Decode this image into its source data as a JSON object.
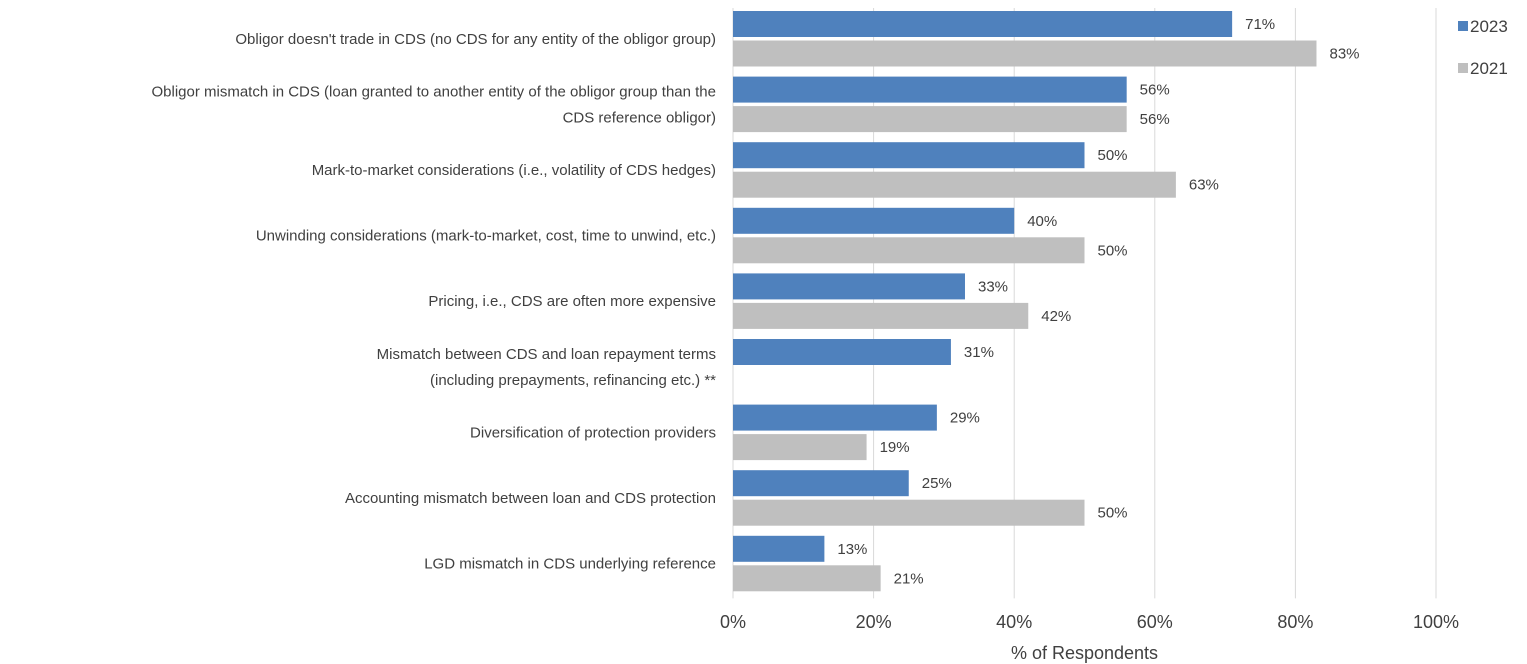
{
  "chart_data": {
    "type": "bar",
    "orientation": "horizontal",
    "categories": [
      [
        "Obligor doesn't trade in CDS (no CDS for any entity of the obligor group)"
      ],
      [
        "Obligor mismatch in CDS (loan granted to another entity of the obligor group than the",
        "CDS reference obligor)"
      ],
      [
        "Mark-to-market considerations (i.e., volatility of CDS hedges)"
      ],
      [
        "Unwinding considerations (mark-to-market, cost, time to unwind, etc.)"
      ],
      [
        "Pricing, i.e., CDS are often more expensive"
      ],
      [
        "Mismatch between CDS and loan repayment terms",
        "(including prepayments, refinancing etc.) **"
      ],
      [
        "Diversification of protection providers"
      ],
      [
        "Accounting mismatch between loan and CDS protection"
      ],
      [
        "LGD mismatch in CDS underlying reference"
      ]
    ],
    "series": [
      {
        "name": "2023",
        "color": "#4f81bd",
        "values": [
          71,
          56,
          50,
          40,
          33,
          31,
          29,
          25,
          13
        ],
        "labels": [
          "71%",
          "56%",
          "50%",
          "40%",
          "33%",
          "31%",
          "29%",
          "25%",
          "13%"
        ]
      },
      {
        "name": "2021",
        "color": "#bfbfbf",
        "values": [
          83,
          56,
          63,
          50,
          42,
          null,
          19,
          50,
          21
        ],
        "labels": [
          "83%",
          "56%",
          "63%",
          "50%",
          "42%",
          null,
          "19%",
          "50%",
          "21%"
        ]
      }
    ],
    "xlim": [
      0,
      100
    ],
    "xticks": [
      0,
      20,
      40,
      60,
      80,
      100
    ],
    "xtick_labels": [
      "0%",
      "20%",
      "40%",
      "60%",
      "80%",
      "100%"
    ],
    "xlabel": "% of Respondents",
    "grid": true,
    "grid_color": "#d9d9d9",
    "legend_position": "top-right"
  }
}
